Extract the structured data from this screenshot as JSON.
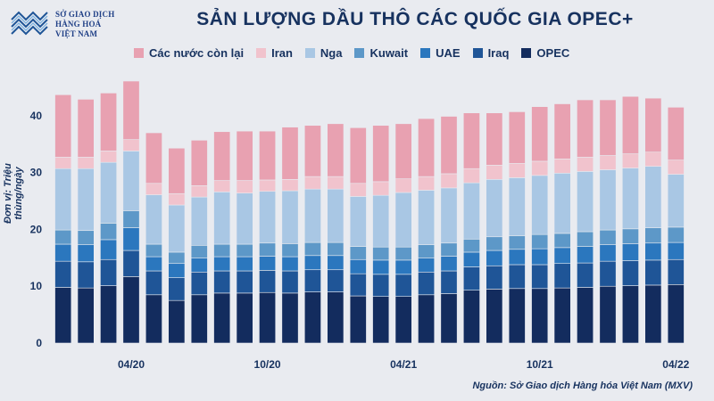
{
  "logo": {
    "line1": "SỞ GIAO DỊCH",
    "line2": "HÀNG HOÁ",
    "line3": "VIỆT NAM"
  },
  "source": "Nguồn: Sở Giao dịch Hàng hóa Việt Nam (MXV)",
  "colors": {
    "OPEC": "#132c5e",
    "Iraq": "#1f5597",
    "UAE": "#2b77be",
    "Kuwait": "#5d98c8",
    "Nga": "#a9c7e4",
    "Iran": "#f1c3cd",
    "Các nước còn lại": "#e8a1b1"
  },
  "chart_data": {
    "type": "bar",
    "stacked": true,
    "title": "SẢN LƯỢNG DẦU THÔ CÁC QUỐC GIA OPEC+",
    "ylabel": "Đơn vị: Triệu thùng/ngày",
    "xlabel": "",
    "ylim": [
      0,
      45
    ],
    "yticks": [
      0,
      10,
      20,
      30,
      40
    ],
    "grid": false,
    "legend_position": "top",
    "categories": [
      "",
      "",
      "",
      "04/20",
      "",
      "",
      "",
      "",
      "",
      "10/20",
      "",
      "",
      "",
      "",
      "",
      "04/21",
      "",
      "",
      "",
      "",
      "",
      "10/21",
      "",
      "",
      "",
      "",
      "",
      "04/22"
    ],
    "series": [
      {
        "name": "OPEC",
        "values": [
          9.8,
          9.7,
          10.1,
          11.7,
          8.5,
          7.5,
          8.5,
          8.8,
          8.8,
          8.9,
          8.8,
          9.0,
          9.0,
          8.3,
          8.2,
          8.2,
          8.5,
          8.7,
          9.3,
          9.5,
          9.6,
          9.6,
          9.7,
          9.8,
          10.0,
          10.1,
          10.2,
          10.3
        ]
      },
      {
        "name": "Iraq",
        "values": [
          4.6,
          4.6,
          4.6,
          4.6,
          4.2,
          4.0,
          4.0,
          3.9,
          3.9,
          3.9,
          3.9,
          3.9,
          3.9,
          3.9,
          3.9,
          3.9,
          4.0,
          4.0,
          4.1,
          4.1,
          4.2,
          4.2,
          4.3,
          4.3,
          4.4,
          4.4,
          4.4,
          4.4
        ]
      },
      {
        "name": "UAE",
        "values": [
          3.0,
          3.0,
          3.5,
          4.0,
          2.5,
          2.5,
          2.5,
          2.5,
          2.5,
          2.5,
          2.5,
          2.5,
          2.5,
          2.5,
          2.5,
          2.5,
          2.5,
          2.6,
          2.6,
          2.7,
          2.7,
          2.8,
          2.8,
          2.9,
          2.9,
          3.0,
          3.0,
          3.0
        ]
      },
      {
        "name": "Kuwait",
        "values": [
          2.5,
          2.5,
          2.9,
          3.0,
          2.2,
          2.0,
          2.2,
          2.2,
          2.2,
          2.3,
          2.3,
          2.3,
          2.3,
          2.3,
          2.3,
          2.3,
          2.3,
          2.3,
          2.3,
          2.4,
          2.4,
          2.5,
          2.5,
          2.6,
          2.6,
          2.6,
          2.7,
          2.7
        ]
      },
      {
        "name": "Nga",
        "values": [
          10.8,
          10.9,
          10.7,
          10.5,
          8.7,
          8.3,
          8.5,
          9.2,
          9.0,
          9.1,
          9.3,
          9.4,
          9.4,
          8.8,
          9.1,
          9.6,
          9.6,
          9.7,
          9.9,
          10.1,
          10.2,
          10.4,
          10.6,
          10.6,
          10.6,
          10.7,
          10.8,
          9.3
        ]
      },
      {
        "name": "Iran",
        "values": [
          2.0,
          2.0,
          2.0,
          2.0,
          2.0,
          2.0,
          2.0,
          2.0,
          2.2,
          2.0,
          2.0,
          2.2,
          2.2,
          2.3,
          2.4,
          2.4,
          2.4,
          2.5,
          2.5,
          2.5,
          2.5,
          2.5,
          2.5,
          2.5,
          2.5,
          2.5,
          2.5,
          2.5
        ]
      },
      {
        "name": "Các nước còn lại",
        "values": [
          11.0,
          10.2,
          10.2,
          10.3,
          8.9,
          8.0,
          8.0,
          8.6,
          8.7,
          8.6,
          9.2,
          9.0,
          9.3,
          9.8,
          9.9,
          9.7,
          10.2,
          10.1,
          9.8,
          9.2,
          9.1,
          9.6,
          9.7,
          10.1,
          9.8,
          10.1,
          9.5,
          9.3
        ]
      }
    ],
    "legend_order": [
      "Các nước còn lại",
      "Iran",
      "Nga",
      "Kuwait",
      "UAE",
      "Iraq",
      "OPEC"
    ]
  }
}
